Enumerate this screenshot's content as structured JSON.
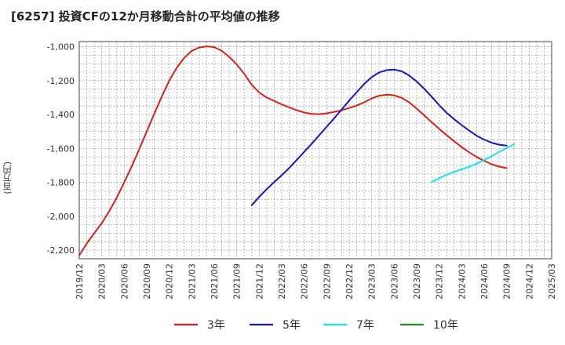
{
  "chart_data": {
    "type": "line",
    "title": "[6257]  投資CFの12か月移動合計の平均値の推移",
    "ylabel": "(百万円)",
    "xlabel": "",
    "ylim": [
      -2250,
      -970
    ],
    "yticks": [
      -1000,
      -1200,
      -1400,
      -1600,
      -1800,
      -2000,
      -2200
    ],
    "ytick_labels": [
      "-1,000",
      "-1,200",
      "-1,400",
      "-1,600",
      "-1,800",
      "-2,000",
      "-2,200"
    ],
    "xlim": [
      "2019-12",
      "2025-03"
    ],
    "xticks": [
      "2019/12",
      "2020/03",
      "2020/06",
      "2020/09",
      "2020/12",
      "2021/03",
      "2021/06",
      "2021/09",
      "2021/12",
      "2022/03",
      "2022/06",
      "2022/09",
      "2022/12",
      "2023/03",
      "2023/06",
      "2023/09",
      "2023/12",
      "2024/03",
      "2024/06",
      "2024/09",
      "2024/12",
      "2025/03"
    ],
    "grid": true,
    "legend_position": "bottom",
    "series": [
      {
        "name": "3年",
        "color": "#dd1e1e",
        "points": [
          [
            "2019-12",
            -2230
          ],
          [
            "2020-01",
            -2160
          ],
          [
            "2020-02",
            -2100
          ],
          [
            "2020-03",
            -2040
          ],
          [
            "2020-04",
            -1970
          ],
          [
            "2020-05",
            -1890
          ],
          [
            "2020-06",
            -1800
          ],
          [
            "2020-07",
            -1705
          ],
          [
            "2020-08",
            -1605
          ],
          [
            "2020-09",
            -1500
          ],
          [
            "2020-10",
            -1395
          ],
          [
            "2020-11",
            -1295
          ],
          [
            "2020-12",
            -1200
          ],
          [
            "2021-01",
            -1125
          ],
          [
            "2021-02",
            -1065
          ],
          [
            "2021-03",
            -1025
          ],
          [
            "2021-04",
            -1005
          ],
          [
            "2021-05",
            -998
          ],
          [
            "2021-06",
            -1003
          ],
          [
            "2021-07",
            -1025
          ],
          [
            "2021-08",
            -1060
          ],
          [
            "2021-09",
            -1105
          ],
          [
            "2021-10",
            -1160
          ],
          [
            "2021-11",
            -1225
          ],
          [
            "2021-12",
            -1270
          ],
          [
            "2022-01",
            -1300
          ],
          [
            "2022-02",
            -1320
          ],
          [
            "2022-03",
            -1340
          ],
          [
            "2022-04",
            -1358
          ],
          [
            "2022-05",
            -1375
          ],
          [
            "2022-06",
            -1388
          ],
          [
            "2022-07",
            -1396
          ],
          [
            "2022-08",
            -1398
          ],
          [
            "2022-09",
            -1393
          ],
          [
            "2022-10",
            -1385
          ],
          [
            "2022-11",
            -1375
          ],
          [
            "2022-12",
            -1362
          ],
          [
            "2023-01",
            -1347
          ],
          [
            "2023-02",
            -1328
          ],
          [
            "2023-03",
            -1305
          ],
          [
            "2023-04",
            -1289
          ],
          [
            "2023-05",
            -1283
          ],
          [
            "2023-06",
            -1287
          ],
          [
            "2023-07",
            -1302
          ],
          [
            "2023-08",
            -1328
          ],
          [
            "2023-09",
            -1365
          ],
          [
            "2023-10",
            -1405
          ],
          [
            "2023-11",
            -1445
          ],
          [
            "2023-12",
            -1485
          ],
          [
            "2024-01",
            -1522
          ],
          [
            "2024-02",
            -1558
          ],
          [
            "2024-03",
            -1592
          ],
          [
            "2024-04",
            -1623
          ],
          [
            "2024-05",
            -1650
          ],
          [
            "2024-06",
            -1673
          ],
          [
            "2024-07",
            -1693
          ],
          [
            "2024-08",
            -1707
          ],
          [
            "2024-09",
            -1716
          ]
        ]
      },
      {
        "name": "5年",
        "color": "#1414c8",
        "points": [
          [
            "2021-11",
            -1935
          ],
          [
            "2021-12",
            -1885
          ],
          [
            "2022-01",
            -1840
          ],
          [
            "2022-02",
            -1798
          ],
          [
            "2022-03",
            -1758
          ],
          [
            "2022-04",
            -1715
          ],
          [
            "2022-05",
            -1668
          ],
          [
            "2022-06",
            -1620
          ],
          [
            "2022-07",
            -1572
          ],
          [
            "2022-08",
            -1522
          ],
          [
            "2022-09",
            -1472
          ],
          [
            "2022-10",
            -1422
          ],
          [
            "2022-11",
            -1370
          ],
          [
            "2022-12",
            -1318
          ],
          [
            "2023-01",
            -1268
          ],
          [
            "2023-02",
            -1220
          ],
          [
            "2023-03",
            -1180
          ],
          [
            "2023-04",
            -1152
          ],
          [
            "2023-05",
            -1138
          ],
          [
            "2023-06",
            -1135
          ],
          [
            "2023-07",
            -1145
          ],
          [
            "2023-08",
            -1170
          ],
          [
            "2023-09",
            -1205
          ],
          [
            "2023-10",
            -1248
          ],
          [
            "2023-11",
            -1295
          ],
          [
            "2023-12",
            -1345
          ],
          [
            "2024-01",
            -1390
          ],
          [
            "2024-02",
            -1428
          ],
          [
            "2024-03",
            -1462
          ],
          [
            "2024-04",
            -1495
          ],
          [
            "2024-05",
            -1525
          ],
          [
            "2024-06",
            -1548
          ],
          [
            "2024-07",
            -1566
          ],
          [
            "2024-08",
            -1578
          ],
          [
            "2024-09",
            -1583
          ]
        ]
      },
      {
        "name": "7年",
        "color": "#14e6e6",
        "points": [
          [
            "2023-11",
            -1798
          ],
          [
            "2023-12",
            -1775
          ],
          [
            "2024-01",
            -1755
          ],
          [
            "2024-02",
            -1738
          ],
          [
            "2024-03",
            -1723
          ],
          [
            "2024-04",
            -1708
          ],
          [
            "2024-05",
            -1690
          ],
          [
            "2024-06",
            -1668
          ],
          [
            "2024-07",
            -1645
          ],
          [
            "2024-08",
            -1620
          ],
          [
            "2024-09",
            -1597
          ],
          [
            "2024-10",
            -1575
          ]
        ]
      },
      {
        "name": "10年",
        "color": "#1e8c1e",
        "points": []
      }
    ]
  }
}
